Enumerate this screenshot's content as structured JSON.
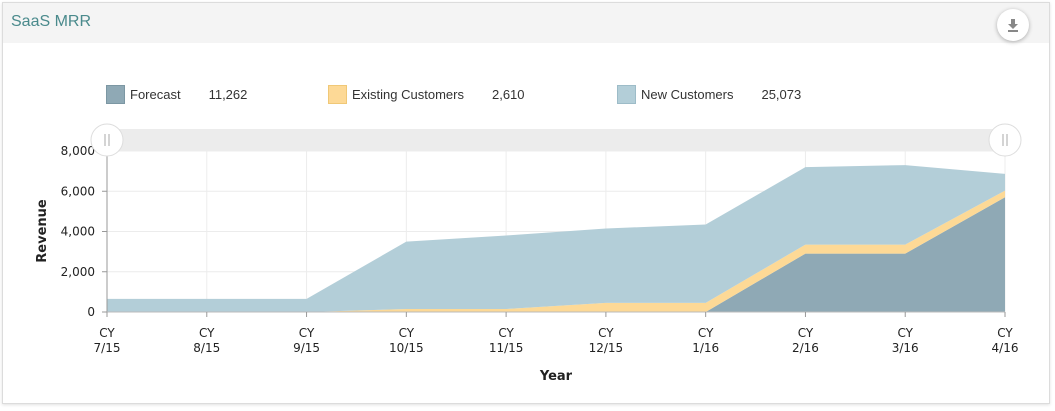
{
  "header": {
    "title": "SaaS MRR",
    "download_icon": "download-icon"
  },
  "legend": [
    {
      "label": "Forecast",
      "value": "11,262",
      "color": "#8fa9b5"
    },
    {
      "label": "Existing Customers",
      "value": "2,610",
      "color": "#fdd996"
    },
    {
      "label": "New Customers",
      "value": "25,073",
      "color": "#b3ced8"
    }
  ],
  "chart_data": {
    "type": "area",
    "stacked": true,
    "xlabel": "Year",
    "ylabel": "Revenue",
    "ylim": [
      0,
      8000
    ],
    "yticks": [
      0,
      2000,
      4000,
      6000,
      8000
    ],
    "ytick_labels": [
      "0",
      "2,000",
      "4,000",
      "6,000",
      "8,000"
    ],
    "categories": [
      [
        "CY",
        "7/15"
      ],
      [
        "CY",
        "8/15"
      ],
      [
        "CY",
        "9/15"
      ],
      [
        "CY",
        "10/15"
      ],
      [
        "CY",
        "11/15"
      ],
      [
        "CY",
        "12/15"
      ],
      [
        "CY",
        "1/16"
      ],
      [
        "CY",
        "2/16"
      ],
      [
        "CY",
        "3/16"
      ],
      [
        "CY",
        "4/16"
      ]
    ],
    "grid": true,
    "legend_position": "top",
    "series": [
      {
        "name": "Forecast",
        "color": "#8fa9b5",
        "values": [
          0,
          0,
          0,
          0,
          0,
          0,
          0,
          2900,
          2900,
          5700
        ]
      },
      {
        "name": "Existing Customers",
        "color": "#fdd996",
        "values": [
          0,
          0,
          0,
          150,
          150,
          450,
          450,
          450,
          450,
          330
        ]
      },
      {
        "name": "New Customers",
        "color": "#b3ced8",
        "values": [
          650,
          650,
          650,
          3350,
          3650,
          3700,
          3900,
          3850,
          3950,
          830
        ]
      }
    ]
  }
}
